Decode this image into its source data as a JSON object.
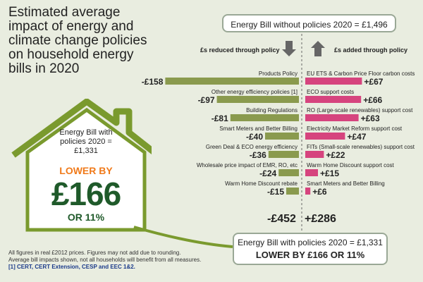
{
  "title": "Estimated average impact of energy and climate change policies on household energy bills in 2020",
  "header_box": "Energy Bill without policies 2020 = £1,496",
  "left_header": "£s reduced through policy",
  "right_header": "£s added through policy",
  "house": {
    "label": "Energy Bill with policies 2020 = £1,331",
    "lower_by": "LOWER BY",
    "amount": "£166",
    "percent": "OR 11%"
  },
  "bottom_box": {
    "line1": "Energy Bill with policies 2020 = £1,331",
    "line2": "LOWER BY £166 OR 11%"
  },
  "totals": {
    "reduced": "-£452",
    "added": "+£286"
  },
  "footnotes": [
    "All figures in real £2012 prices. Figures may not add due to rounding.",
    "Average bill impacts shown, not all households will benefit from all measures.",
    "[1] CERT, CERT Extension, CESP and EEC 1&2."
  ],
  "colors": {
    "reduced": "#8a9a4e",
    "added": "#d6447e",
    "house_green": "#7a9a2e",
    "accent_orange": "#f07a1a",
    "dark_green": "#1f5a2a"
  },
  "chart_data": {
    "type": "bar",
    "title": "Estimated average impact of energy and climate change policies on household energy bills in 2020",
    "series": [
      {
        "name": "£s reduced through policy",
        "categories": [
          "Products Policy",
          "Other energy efficiency policies [1]",
          "Building Regulations",
          "Smart Meters and Better Billing",
          "Green Deal & ECO energy efficiency",
          "Wholesale price impact of EMR, RO, etc",
          "Warm Home Discount rebate"
        ],
        "values": [
          -158,
          -97,
          -81,
          -40,
          -36,
          -24,
          -15
        ],
        "labels": [
          "-£158",
          "-£97",
          "-£81",
          "-£40",
          "-£36",
          "-£24",
          "-£15"
        ]
      },
      {
        "name": "£s added through policy",
        "categories": [
          "EU ETS & Carbon Price Floor carbon costs",
          "ECO support costs",
          "RO (Large-scale renewables) support cost",
          "Electricity Market Reform support cost",
          "FITs (Small-scale renewables) support cost",
          "Warm Home Discount support cost",
          "Smart Meters and Better Billing"
        ],
        "values": [
          67,
          66,
          63,
          47,
          22,
          15,
          6
        ],
        "labels": [
          "+£67",
          "+£66",
          "+£63",
          "+£47",
          "+£22",
          "+£15",
          "+£6"
        ]
      }
    ]
  }
}
